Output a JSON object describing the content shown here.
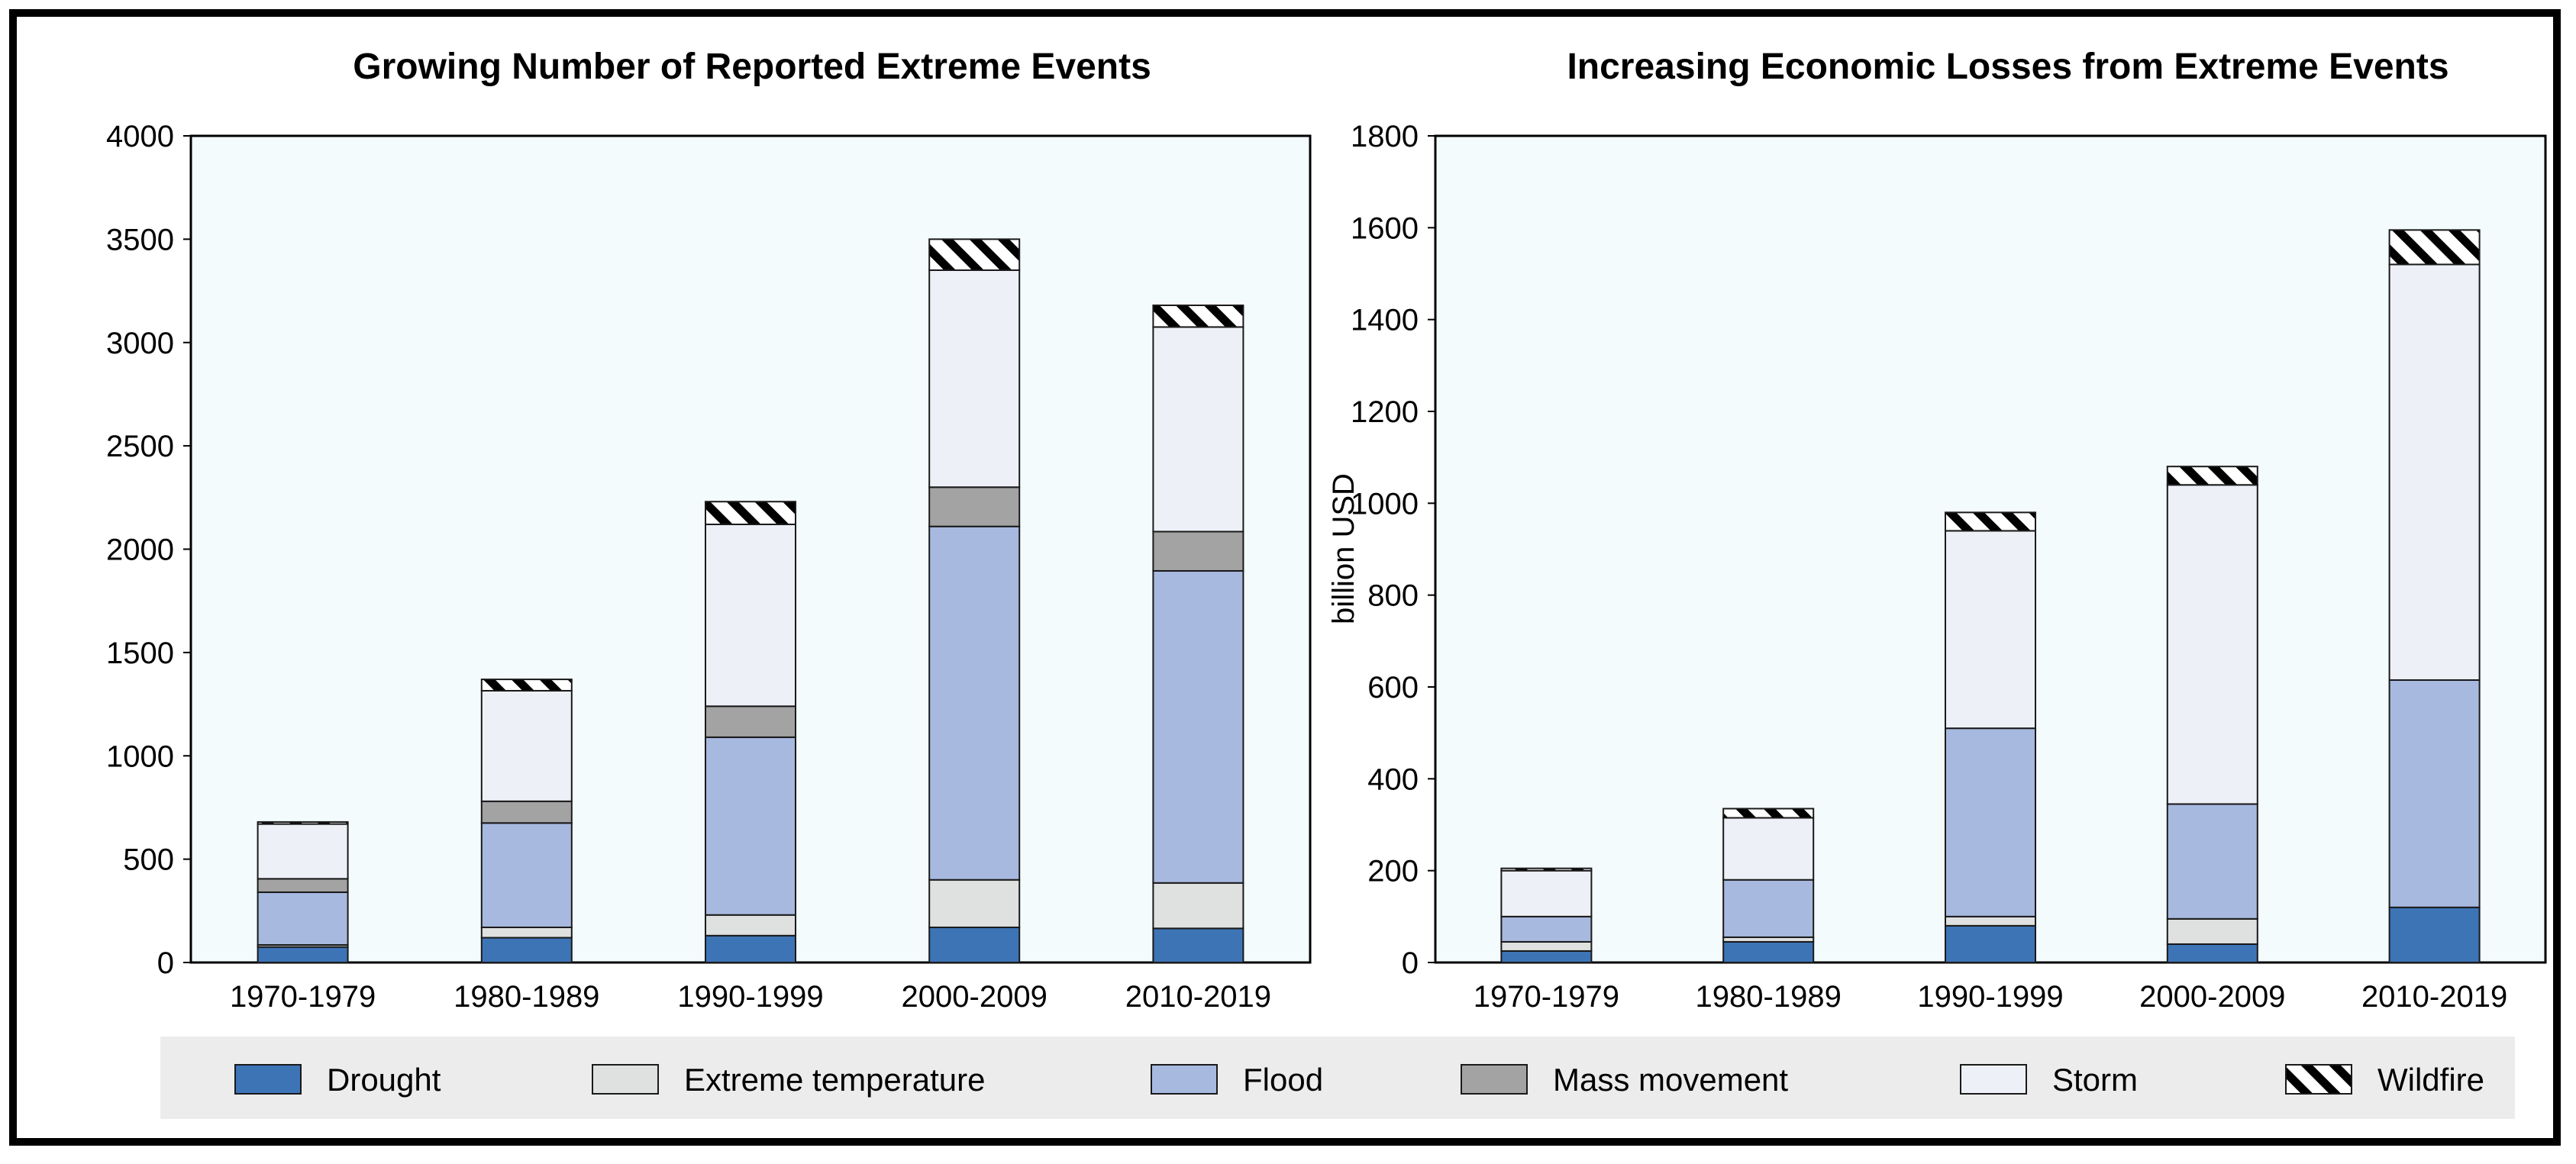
{
  "chart_data": [
    {
      "type": "bar",
      "stacked": true,
      "title": "Growing Number of Reported Extreme Events",
      "xlabel": "",
      "ylabel": "",
      "ylim": [
        0,
        4000
      ],
      "yticks": [
        "0",
        "500",
        "1000",
        "1500",
        "2000",
        "2500",
        "3000",
        "3500",
        "4000"
      ],
      "categories": [
        "1970-1979",
        "1980-1989",
        "1990-1999",
        "2000-2009",
        "2010-2019"
      ],
      "series": [
        {
          "name": "Drought",
          "values": [
            75,
            120,
            130,
            170,
            165
          ]
        },
        {
          "name": "Extreme temperature",
          "values": [
            10,
            50,
            100,
            230,
            220
          ]
        },
        {
          "name": "Flood",
          "values": [
            255,
            505,
            860,
            1710,
            1510
          ]
        },
        {
          "name": "Mass movement",
          "values": [
            65,
            105,
            150,
            190,
            190
          ]
        },
        {
          "name": "Storm",
          "values": [
            265,
            535,
            880,
            1050,
            990
          ]
        },
        {
          "name": "Wildfire",
          "values": [
            10,
            55,
            110,
            150,
            105
          ]
        }
      ],
      "grid": false
    },
    {
      "type": "bar",
      "stacked": true,
      "title": "Increasing Economic Losses from Extreme Events",
      "xlabel": "",
      "ylabel": "billion USD",
      "ylim": [
        0,
        1800
      ],
      "yticks": [
        "0",
        "200",
        "400",
        "600",
        "800",
        "1000",
        "1200",
        "1400",
        "1600",
        "1800"
      ],
      "categories": [
        "1970-1979",
        "1980-1989",
        "1990-1999",
        "2000-2009",
        "2010-2019"
      ],
      "series": [
        {
          "name": "Drought",
          "values": [
            25,
            45,
            80,
            40,
            120
          ]
        },
        {
          "name": "Extreme temperature",
          "values": [
            20,
            10,
            20,
            55,
            0
          ]
        },
        {
          "name": "Flood",
          "values": [
            55,
            125,
            410,
            250,
            495
          ]
        },
        {
          "name": "Mass movement",
          "values": [
            0,
            0,
            0,
            0,
            0
          ]
        },
        {
          "name": "Storm",
          "values": [
            100,
            135,
            430,
            695,
            905
          ]
        },
        {
          "name": "Wildfire",
          "values": [
            5,
            20,
            40,
            40,
            75
          ]
        }
      ],
      "grid": false
    }
  ],
  "legend": {
    "placement": "bottom",
    "items": [
      {
        "name": "Drought",
        "label": "Drought"
      },
      {
        "name": "Extreme temperature",
        "label": "Extreme temperature"
      },
      {
        "name": "Flood",
        "label": "Flood"
      },
      {
        "name": "Mass movement",
        "label": "Mass movement"
      },
      {
        "name": "Storm",
        "label": "Storm"
      },
      {
        "name": "Wildfire",
        "label": "Wildfire"
      }
    ]
  },
  "colors": {
    "Drought": "#3d74b6",
    "Extreme temperature": "#dfe0e0",
    "Flood": "#a8b9e0",
    "Mass movement": "#a3a3a3",
    "Storm": "#eef0f8",
    "Wildfire": "#ffffff",
    "plot_background": "#f3fbfd",
    "legend_background": "#ececec"
  }
}
